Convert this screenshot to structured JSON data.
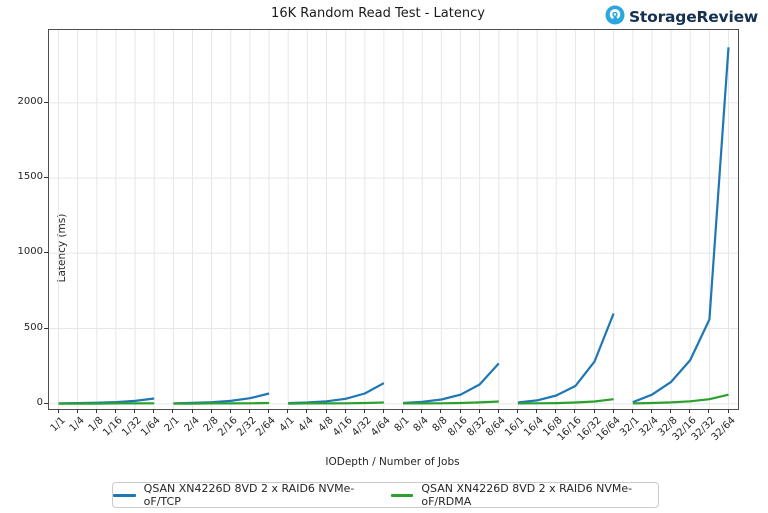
{
  "branding": {
    "logo_text": "StorageReview",
    "logo_color": "#2aa7dd",
    "text_color": "#16304f"
  },
  "chart_data": {
    "type": "line",
    "title": "16K Random Read Test - Latency",
    "xlabel": "IODepth / Number of Jobs",
    "ylabel": "Latency (ms)",
    "categories": [
      "1/1",
      "1/4",
      "1/8",
      "1/16",
      "1/32",
      "1/64",
      "2/1",
      "2/4",
      "2/8",
      "2/16",
      "2/32",
      "2/64",
      "4/1",
      "4/4",
      "4/8",
      "4/16",
      "4/32",
      "4/64",
      "8/1",
      "8/4",
      "8/8",
      "8/16",
      "8/32",
      "8/64",
      "16/1",
      "16/4",
      "16/8",
      "16/16",
      "16/32",
      "16/64",
      "32/1",
      "32/4",
      "32/8",
      "32/16",
      "32/32",
      "32/64"
    ],
    "yticks": [
      0,
      500,
      1000,
      1500,
      2000
    ],
    "ylim": [
      -35,
      2485
    ],
    "grid": true,
    "grid_color": "#e7e7e7",
    "legend_position": "bottom",
    "segment_size": 6,
    "series": [
      {
        "name": "QSAN XN4226D 8VD 2 x RAID6 NVMe-oF/TCP",
        "color": "#1f77b4",
        "values": [
          2,
          4,
          7,
          11,
          19,
          35,
          3,
          6,
          10,
          19,
          37,
          68,
          4,
          8,
          16,
          33,
          68,
          137,
          5,
          13,
          28,
          60,
          128,
          268,
          8,
          22,
          55,
          118,
          280,
          600,
          10,
          60,
          145,
          290,
          560,
          2370
        ]
      },
      {
        "name": "QSAN XN4226D 8VD 2 x RAID6 NVMe-oF/RDMA",
        "color": "#2ca02c",
        "values": [
          1,
          1,
          1,
          2,
          2,
          3,
          1,
          1,
          2,
          2,
          3,
          5,
          1,
          2,
          2,
          3,
          5,
          8,
          2,
          2,
          3,
          5,
          9,
          15,
          2,
          3,
          4,
          8,
          15,
          30,
          2,
          5,
          9,
          16,
          30,
          60
        ]
      }
    ]
  }
}
